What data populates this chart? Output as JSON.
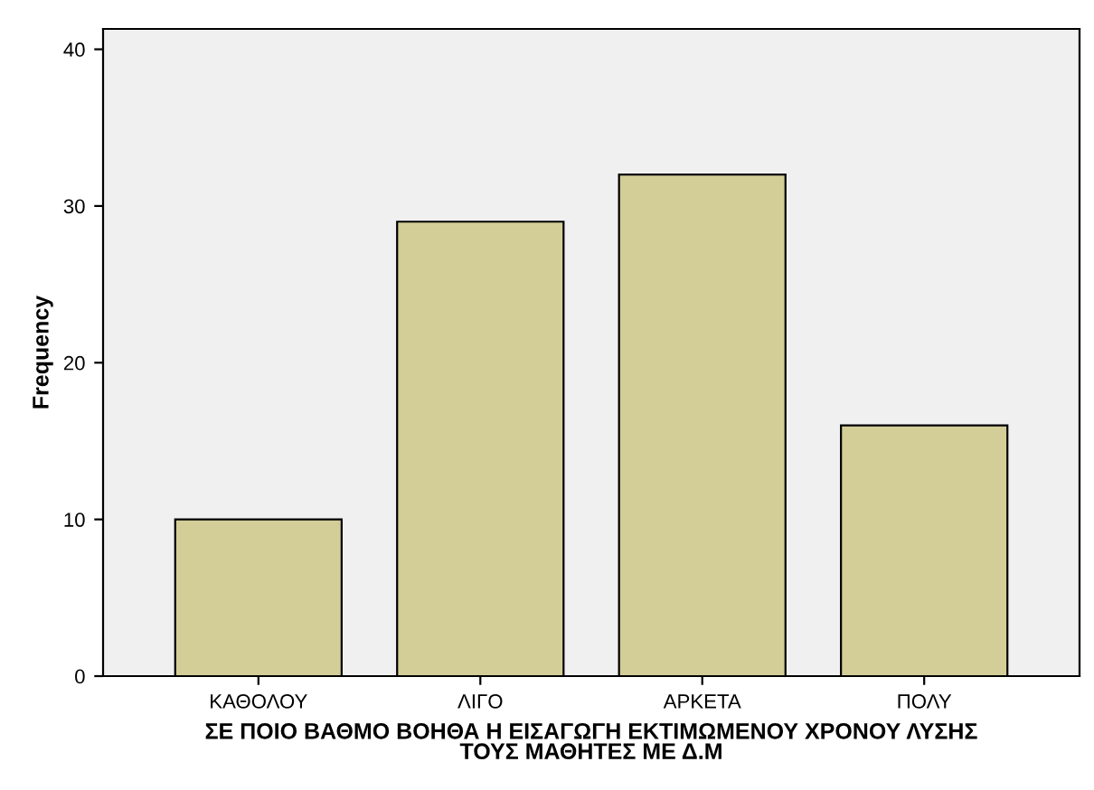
{
  "chart_data": {
    "type": "bar",
    "xlabel": "ΣΕ ΠΟΙΟ ΒΑΘΜΟ ΒΟΗΘΑ Η ΕΙΣΑΓΩΓΗ ΕΚΤΙΜΩΜΕΝΟΥ ΧΡΟΝΟΥ ΛΥΣΗΣ\nΤΟΥΣ ΜΑΘΗΤΕΣ ΜΕ Δ.Μ",
    "ylabel": "Frequency",
    "categories": [
      "ΚΑΘΟΛΟΥ",
      "ΛΙΓΟ",
      "ΑΡΚΕΤΑ",
      "ΠΟΛΥ"
    ],
    "values": [
      10,
      29,
      32,
      16
    ],
    "color": "#d3ce98",
    "ylim": [
      0,
      41.3
    ],
    "yticks": [
      0,
      10,
      20,
      30,
      40
    ],
    "grid": false
  }
}
